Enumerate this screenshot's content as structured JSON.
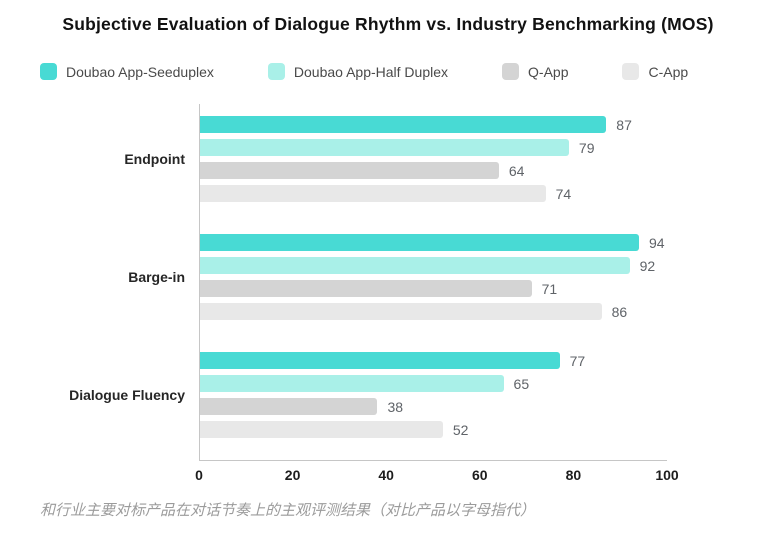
{
  "chart_data": {
    "type": "bar",
    "orientation": "horizontal",
    "title": "Subjective Evaluation of Dialogue Rhythm vs. Industry Benchmarking (MOS)",
    "categories": [
      "Endpoint",
      "Barge-in",
      "Dialogue Fluency"
    ],
    "series": [
      {
        "name": "Doubao App-Seeduplex",
        "color": "#48dad4",
        "values": [
          87,
          94,
          77
        ]
      },
      {
        "name": "Doubao App-Half Duplex",
        "color": "#a9f0e8",
        "values": [
          79,
          92,
          65
        ]
      },
      {
        "name": "Q-App",
        "color": "#d4d4d4",
        "values": [
          64,
          71,
          38
        ]
      },
      {
        "name": "C-App",
        "color": "#e8e8e8",
        "values": [
          74,
          86,
          52
        ]
      }
    ],
    "xlabel": "",
    "ylabel": "",
    "xlim": [
      0,
      100
    ],
    "x_ticks": [
      0,
      20,
      40,
      60,
      80,
      100
    ],
    "grid": false,
    "legend_position": "top",
    "value_labels_shown": true,
    "axis_line_color": "#c6c6c6",
    "caption": "和行业主要对标产品在对话节奏上的主观评测结果（对比产品以字母指代）"
  }
}
